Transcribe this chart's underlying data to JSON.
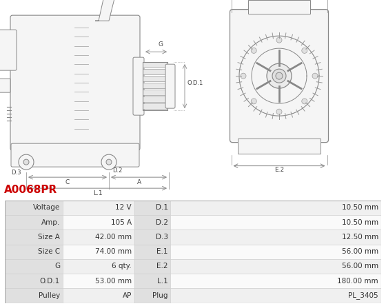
{
  "title": "A0068PR",
  "title_color": "#cc0000",
  "image_bg": "#ffffff",
  "table": {
    "left_col": [
      "Voltage",
      "Amp.",
      "Size A",
      "Size C",
      "G",
      "O.D.1",
      "Pulley"
    ],
    "left_val": [
      "12 V",
      "105 A",
      "42.00 mm",
      "74.00 mm",
      "6 qty.",
      "53.00 mm",
      "AP"
    ],
    "right_col": [
      "D.1",
      "D.2",
      "D.3",
      "E.1",
      "E.2",
      "L.1",
      "Plug"
    ],
    "right_val": [
      "10.50 mm",
      "10.50 mm",
      "12.50 mm",
      "56.00 mm",
      "56.00 mm",
      "180.00 mm",
      "PL_3405"
    ]
  },
  "col_header_bg": "#e0e0e0",
  "row_bg_odd": "#f0f0f0",
  "row_bg_even": "#fafafa",
  "border_color": "#cccccc",
  "text_color": "#333333",
  "font_size": 7.5,
  "diagram_line_color": "#888888",
  "diagram_fill": "#f5f5f5"
}
